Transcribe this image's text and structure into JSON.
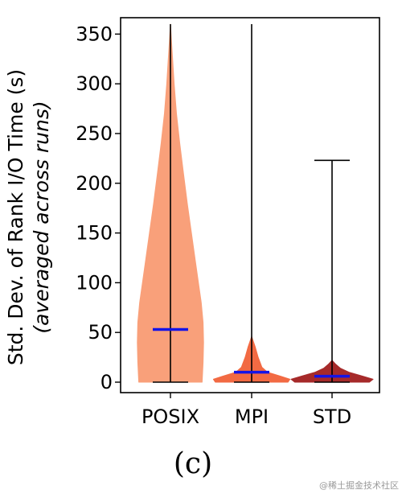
{
  "chart_data": {
    "type": "violin",
    "ylabel": "Std. Dev. of Rank I/O Time (s)",
    "ylabel_sub": "(averaged across runs)",
    "ylim": [
      0,
      360
    ],
    "yticks": [
      0,
      50,
      100,
      150,
      200,
      250,
      300,
      350
    ],
    "categories": [
      "POSIX",
      "MPI",
      "STD"
    ],
    "series": [
      {
        "category": "POSIX",
        "min": 0,
        "max": 360,
        "mean": 53,
        "color": "#F9A07A",
        "profile": [
          [
            0,
            0.68
          ],
          [
            20,
            0.7
          ],
          [
            40,
            0.71
          ],
          [
            60,
            0.7
          ],
          [
            80,
            0.66
          ],
          [
            100,
            0.6
          ],
          [
            120,
            0.54
          ],
          [
            150,
            0.45
          ],
          [
            180,
            0.36
          ],
          [
            210,
            0.28
          ],
          [
            240,
            0.2
          ],
          [
            270,
            0.13
          ],
          [
            300,
            0.08
          ],
          [
            330,
            0.04
          ],
          [
            360,
            0.0
          ]
        ]
      },
      {
        "category": "MPI",
        "min": 0,
        "max": 360,
        "mean": 10,
        "color": "#F26A43",
        "profile": [
          [
            0,
            0.78
          ],
          [
            3,
            0.82
          ],
          [
            6,
            0.62
          ],
          [
            10,
            0.34
          ],
          [
            15,
            0.22
          ],
          [
            25,
            0.14
          ],
          [
            35,
            0.08
          ],
          [
            42,
            0.03
          ],
          [
            46,
            0.0
          ]
        ]
      },
      {
        "category": "STD",
        "min": 0,
        "max": 223,
        "mean": 6,
        "color": "#A62A2A",
        "profile": [
          [
            0,
            0.8
          ],
          [
            3,
            0.88
          ],
          [
            6,
            0.66
          ],
          [
            10,
            0.36
          ],
          [
            14,
            0.18
          ],
          [
            18,
            0.08
          ],
          [
            22,
            0.0
          ]
        ]
      }
    ],
    "mean_color": "#1414E6",
    "annotation": "(c)"
  },
  "watermark": "@稀土掘金技术社区"
}
